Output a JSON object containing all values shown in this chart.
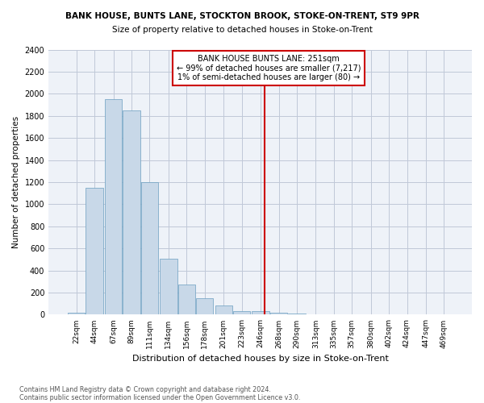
{
  "title1": "BANK HOUSE, BUNTS LANE, STOCKTON BROOK, STOKE-ON-TRENT, ST9 9PR",
  "title2": "Size of property relative to detached houses in Stoke-on-Trent",
  "xlabel": "Distribution of detached houses by size in Stoke-on-Trent",
  "ylabel": "Number of detached properties",
  "footnote1": "Contains HM Land Registry data © Crown copyright and database right 2024.",
  "footnote2": "Contains public sector information licensed under the Open Government Licence v3.0.",
  "annotation_line1": "BANK HOUSE BUNTS LANE: 251sqm",
  "annotation_line2": "← 99% of detached houses are smaller (7,217)",
  "annotation_line3": "1% of semi-detached houses are larger (80) →",
  "bar_color": "#c8d8e8",
  "bar_edge_color": "#6a9ec0",
  "vline_color": "#cc0000",
  "vline_x": 251,
  "categories": [
    22,
    44,
    67,
    89,
    111,
    134,
    156,
    178,
    201,
    223,
    246,
    268,
    290,
    313,
    335,
    357,
    380,
    402,
    424,
    447,
    469
  ],
  "values": [
    20,
    1150,
    1950,
    1850,
    1200,
    510,
    270,
    150,
    80,
    35,
    30,
    15,
    8,
    5,
    3,
    2,
    2,
    1,
    1,
    1,
    0
  ],
  "ylim": [
    0,
    2400
  ],
  "yticks": [
    0,
    200,
    400,
    600,
    800,
    1000,
    1200,
    1400,
    1600,
    1800,
    2000,
    2200,
    2400
  ],
  "bin_width": 22,
  "background_color": "#ffffff",
  "grid_color": "#c0c8d8",
  "ax_facecolor": "#eef2f8"
}
